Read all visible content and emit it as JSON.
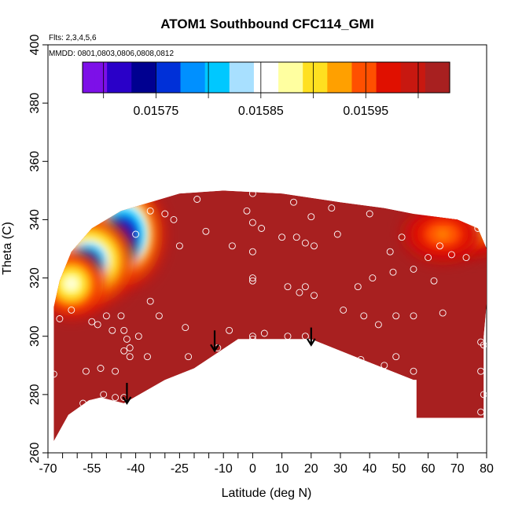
{
  "chart_data": {
    "type": "heatmap",
    "title": "ATOM1 Southbound CFC114_GMI",
    "notes": {
      "flights": "Flts: 2,3,4,5,6",
      "dates": "MMDD: 0801,0803,0806,0808,0812"
    },
    "xlabel": "Latitude (deg N)",
    "ylabel": "Theta (C)",
    "xlim": [
      -70,
      80
    ],
    "ylim": [
      260,
      400
    ],
    "xticks": [
      -70,
      -55,
      -40,
      -25,
      -10,
      0,
      10,
      20,
      30,
      40,
      50,
      60,
      70,
      80
    ],
    "xticks_minor": [
      -65,
      -60,
      -50,
      -45,
      -35,
      -30,
      -20,
      -15,
      -5
    ],
    "yticks": [
      260,
      280,
      300,
      320,
      340,
      360,
      380,
      400
    ],
    "colorbar": {
      "range": [
        0.01568,
        0.01603
      ],
      "tick_values": [
        0.01575,
        0.01585,
        0.01595
      ],
      "tick_labels": [
        "0.01575",
        "0.01585",
        "0.01595"
      ],
      "colors": [
        "#7d10e8",
        "#2a00c8",
        "#000090",
        "#0030d8",
        "#0090ff",
        "#00c8ff",
        "#a8e0ff",
        "#ffffff",
        "#ffffa0",
        "#ffe020",
        "#ffa000",
        "#ff5000",
        "#e01000",
        "#c81810",
        "#a82020"
      ]
    },
    "background_value": 0.01601,
    "data_envelope": [
      [
        -68,
        264
      ],
      [
        -63,
        273
      ],
      [
        -56,
        278
      ],
      [
        -52,
        279
      ],
      [
        -44,
        277
      ],
      [
        -30,
        285
      ],
      [
        -20,
        289
      ],
      [
        -5,
        299
      ],
      [
        5,
        299
      ],
      [
        20,
        299
      ],
      [
        35,
        293
      ],
      [
        55,
        285
      ],
      [
        56,
        285
      ],
      [
        56,
        272
      ],
      [
        79,
        272
      ],
      [
        79,
        300
      ],
      [
        80,
        311
      ],
      [
        80,
        330
      ],
      [
        77,
        337
      ],
      [
        70,
        340
      ],
      [
        55,
        342
      ],
      [
        45,
        344
      ],
      [
        30,
        346
      ],
      [
        10,
        349
      ],
      [
        -10,
        350
      ],
      [
        -25,
        349
      ],
      [
        -35,
        346
      ],
      [
        -45,
        343
      ],
      [
        -55,
        337
      ],
      [
        -62,
        329
      ],
      [
        -66,
        319
      ],
      [
        -68,
        310
      ]
    ],
    "low_anomalies": [
      {
        "lon": -44,
        "lat": 335,
        "value": 0.01572,
        "sx": 6,
        "sy": 8
      },
      {
        "lon": -56,
        "lat": 326,
        "value": 0.01577,
        "sx": 7,
        "sy": 7
      },
      {
        "lon": -62,
        "lat": 318,
        "value": 0.01585,
        "sx": 5,
        "sy": 5
      },
      {
        "lon": 75,
        "lat": 337,
        "value": 0.01588,
        "sx": 6,
        "sy": 4
      },
      {
        "lon": 65,
        "lat": 335,
        "value": 0.01593,
        "sx": 6,
        "sy": 4
      }
    ],
    "sample_points": [
      [
        -68,
        287
      ],
      [
        -66,
        306
      ],
      [
        -62,
        309
      ],
      [
        -57,
        288
      ],
      [
        -58,
        277
      ],
      [
        -55,
        305
      ],
      [
        -53,
        304
      ],
      [
        -52,
        289
      ],
      [
        -51,
        280
      ],
      [
        -50,
        307
      ],
      [
        -48,
        302
      ],
      [
        -47,
        288
      ],
      [
        -47,
        279
      ],
      [
        -45,
        307
      ],
      [
        -44,
        302
      ],
      [
        -44,
        295
      ],
      [
        -44,
        279
      ],
      [
        -43,
        299
      ],
      [
        -42,
        296
      ],
      [
        -42,
        293
      ],
      [
        -39,
        300
      ],
      [
        -36,
        293
      ],
      [
        -40,
        335
      ],
      [
        -35,
        343
      ],
      [
        -35,
        312
      ],
      [
        -32,
        307
      ],
      [
        -30,
        342
      ],
      [
        -27,
        340
      ],
      [
        -25,
        331
      ],
      [
        -23,
        303
      ],
      [
        -22,
        293
      ],
      [
        -19,
        347
      ],
      [
        -16,
        336
      ],
      [
        -12,
        296
      ],
      [
        -7,
        331
      ],
      [
        -8,
        302
      ],
      [
        -2,
        343
      ],
      [
        0,
        339
      ],
      [
        0,
        329
      ],
      [
        0,
        320
      ],
      [
        0,
        319
      ],
      [
        0,
        300
      ],
      [
        0,
        299
      ],
      [
        0,
        349
      ],
      [
        3,
        337
      ],
      [
        4,
        301
      ],
      [
        10,
        334
      ],
      [
        12,
        317
      ],
      [
        12,
        300
      ],
      [
        14,
        346
      ],
      [
        15,
        334
      ],
      [
        16,
        315
      ],
      [
        18,
        332
      ],
      [
        18,
        317
      ],
      [
        18,
        300
      ],
      [
        20,
        341
      ],
      [
        21,
        314
      ],
      [
        21,
        331
      ],
      [
        27,
        344
      ],
      [
        29,
        335
      ],
      [
        31,
        309
      ],
      [
        36,
        317
      ],
      [
        37,
        292
      ],
      [
        38,
        307
      ],
      [
        40,
        342
      ],
      [
        41,
        320
      ],
      [
        43,
        304
      ],
      [
        45,
        290
      ],
      [
        47,
        329
      ],
      [
        48,
        322
      ],
      [
        49,
        307
      ],
      [
        49,
        293
      ],
      [
        51,
        334
      ],
      [
        55,
        323
      ],
      [
        55,
        307
      ],
      [
        55,
        288
      ],
      [
        60,
        327
      ],
      [
        62,
        319
      ],
      [
        64,
        331
      ],
      [
        65,
        308
      ],
      [
        68,
        328
      ],
      [
        73,
        327
      ],
      [
        77,
        337
      ],
      [
        78,
        298
      ],
      [
        79,
        297
      ],
      [
        78,
        288
      ],
      [
        79,
        280
      ],
      [
        78,
        274
      ]
    ],
    "arrows": [
      {
        "x": -43,
        "y_top": 284,
        "y_bottom": 277
      },
      {
        "x": -13,
        "y_top": 302,
        "y_bottom": 295
      },
      {
        "x": 20,
        "y_top": 303,
        "y_bottom": 297
      }
    ]
  }
}
